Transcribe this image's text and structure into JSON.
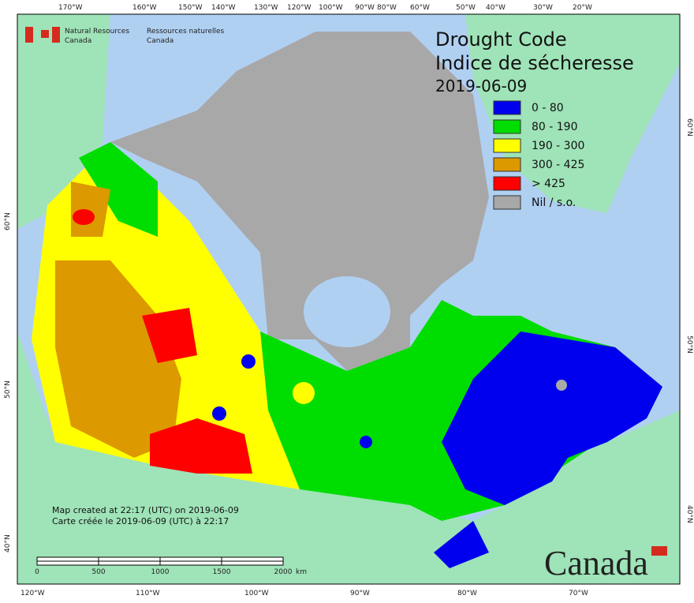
{
  "header": {
    "agency_en": [
      "Natural Resources",
      "Canada"
    ],
    "agency_fr": [
      "Ressources naturelles",
      "Canada"
    ]
  },
  "title": {
    "en": "Drought Code",
    "fr": "Indice de sécheresse",
    "date": "2019-06-09"
  },
  "legend": {
    "items": [
      {
        "label": "0 - 80",
        "color": "#0000ee"
      },
      {
        "label": "80 - 190",
        "color": "#00dd00"
      },
      {
        "label": "190 - 300",
        "color": "#ffff00"
      },
      {
        "label": "300 - 425",
        "color": "#dd9900"
      },
      {
        "label": "> 425",
        "color": "#ff0000"
      },
      {
        "label": "Nil / s.o.",
        "color": "#a8a8a8"
      }
    ]
  },
  "graticule": {
    "top": [
      "170°W",
      "160°W",
      "150°W",
      "140°W",
      "130°W",
      "120°W",
      "100°W",
      "90°W",
      "80°W",
      "60°W",
      "50°W",
      "40°W",
      "30°W",
      "20°W"
    ],
    "bottom": [
      "120°W",
      "110°W",
      "100°W",
      "90°W",
      "80°W",
      "70°W"
    ],
    "left": [
      "60°N",
      "50°N",
      "40°N"
    ],
    "right": [
      "60°N",
      "50°N",
      "40°N"
    ]
  },
  "footer": {
    "created_en": "Map created at 22:17 (UTC) on 2019-06-09",
    "created_fr": "Carte créée le 2019-06-09 (UTC) à 22:17"
  },
  "scale_bar": {
    "labels": [
      "0",
      "500",
      "1000",
      "1500",
      "2000"
    ],
    "unit": "km"
  },
  "wordmark": "Canada"
}
